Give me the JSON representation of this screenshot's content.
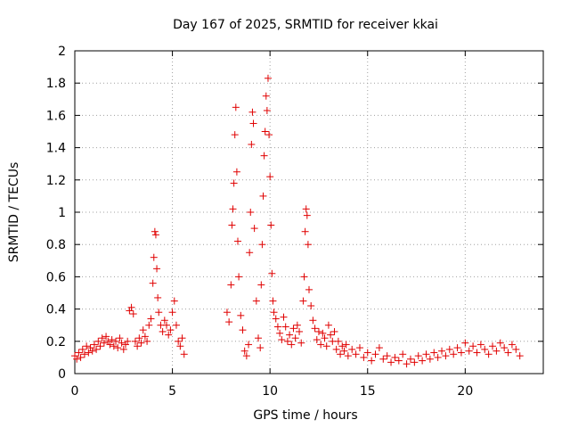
{
  "chart_data": {
    "type": "scatter",
    "title": "Day 167 of 2025, SRMTID for receiver kkai",
    "xlabel": "GPS time / hours",
    "ylabel": "SRMTID / TECUs",
    "xlim": [
      0,
      24
    ],
    "ylim": [
      0,
      2
    ],
    "x_ticks": [
      0,
      5,
      10,
      15,
      20
    ],
    "y_ticks": [
      0,
      0.2,
      0.4,
      0.6,
      0.8,
      1,
      1.2,
      1.4,
      1.6,
      1.8,
      2
    ],
    "x_tick_labels": [
      "0",
      "5",
      "10",
      "15",
      "20"
    ],
    "y_tick_labels": [
      "0",
      "0.2",
      "0.4",
      "0.6",
      "0.8",
      "1",
      "1.2",
      "1.4",
      "1.6",
      "1.8",
      "2"
    ],
    "grid": true,
    "marker": "+",
    "marker_color": "#e00000",
    "series": [
      {
        "name": "kkai",
        "points": [
          [
            0.0,
            0.11
          ],
          [
            0.1,
            0.09
          ],
          [
            0.2,
            0.13
          ],
          [
            0.3,
            0.1
          ],
          [
            0.4,
            0.15
          ],
          [
            0.5,
            0.12
          ],
          [
            0.6,
            0.17
          ],
          [
            0.7,
            0.13
          ],
          [
            0.8,
            0.16
          ],
          [
            0.9,
            0.14
          ],
          [
            1.0,
            0.18
          ],
          [
            1.1,
            0.15
          ],
          [
            1.2,
            0.2
          ],
          [
            1.3,
            0.17
          ],
          [
            1.4,
            0.22
          ],
          [
            1.5,
            0.19
          ],
          [
            1.6,
            0.23
          ],
          [
            1.7,
            0.2
          ],
          [
            1.8,
            0.18
          ],
          [
            1.9,
            0.21
          ],
          [
            2.0,
            0.17
          ],
          [
            2.1,
            0.2
          ],
          [
            2.2,
            0.16
          ],
          [
            2.3,
            0.22
          ],
          [
            2.4,
            0.19
          ],
          [
            2.5,
            0.15
          ],
          [
            2.6,
            0.18
          ],
          [
            2.7,
            0.2
          ],
          [
            2.8,
            0.39
          ],
          [
            2.9,
            0.41
          ],
          [
            3.0,
            0.37
          ],
          [
            3.1,
            0.2
          ],
          [
            3.2,
            0.17
          ],
          [
            3.3,
            0.22
          ],
          [
            3.4,
            0.19
          ],
          [
            3.5,
            0.27
          ],
          [
            3.6,
            0.23
          ],
          [
            3.7,
            0.2
          ],
          [
            3.8,
            0.3
          ],
          [
            3.9,
            0.34
          ],
          [
            4.0,
            0.56
          ],
          [
            4.05,
            0.72
          ],
          [
            4.1,
            0.88
          ],
          [
            4.15,
            0.86
          ],
          [
            4.2,
            0.65
          ],
          [
            4.25,
            0.47
          ],
          [
            4.3,
            0.38
          ],
          [
            4.4,
            0.3
          ],
          [
            4.5,
            0.26
          ],
          [
            4.6,
            0.33
          ],
          [
            4.7,
            0.3
          ],
          [
            4.8,
            0.24
          ],
          [
            4.9,
            0.27
          ],
          [
            5.0,
            0.38
          ],
          [
            5.1,
            0.45
          ],
          [
            5.2,
            0.3
          ],
          [
            5.3,
            0.2
          ],
          [
            5.4,
            0.17
          ],
          [
            5.5,
            0.22
          ],
          [
            5.6,
            0.12
          ],
          [
            7.8,
            0.38
          ],
          [
            7.9,
            0.32
          ],
          [
            8.0,
            0.55
          ],
          [
            8.05,
            0.92
          ],
          [
            8.1,
            1.02
          ],
          [
            8.15,
            1.18
          ],
          [
            8.2,
            1.48
          ],
          [
            8.25,
            1.65
          ],
          [
            8.3,
            1.25
          ],
          [
            8.35,
            0.82
          ],
          [
            8.4,
            0.6
          ],
          [
            8.5,
            0.36
          ],
          [
            8.6,
            0.27
          ],
          [
            8.7,
            0.14
          ],
          [
            8.8,
            0.11
          ],
          [
            8.9,
            0.18
          ],
          [
            8.95,
            0.75
          ],
          [
            9.0,
            1.0
          ],
          [
            9.05,
            1.42
          ],
          [
            9.1,
            1.62
          ],
          [
            9.15,
            1.55
          ],
          [
            9.2,
            0.9
          ],
          [
            9.3,
            0.45
          ],
          [
            9.4,
            0.22
          ],
          [
            9.5,
            0.16
          ],
          [
            9.55,
            0.55
          ],
          [
            9.6,
            0.8
          ],
          [
            9.65,
            1.1
          ],
          [
            9.7,
            1.35
          ],
          [
            9.75,
            1.5
          ],
          [
            9.8,
            1.72
          ],
          [
            9.85,
            1.63
          ],
          [
            9.9,
            1.83
          ],
          [
            9.95,
            1.48
          ],
          [
            10.0,
            1.22
          ],
          [
            10.05,
            0.92
          ],
          [
            10.1,
            0.62
          ],
          [
            10.15,
            0.45
          ],
          [
            10.2,
            0.38
          ],
          [
            10.3,
            0.34
          ],
          [
            10.4,
            0.29
          ],
          [
            10.5,
            0.25
          ],
          [
            10.6,
            0.21
          ],
          [
            10.7,
            0.35
          ],
          [
            10.8,
            0.29
          ],
          [
            10.9,
            0.2
          ],
          [
            11.0,
            0.24
          ],
          [
            11.1,
            0.18
          ],
          [
            11.2,
            0.28
          ],
          [
            11.3,
            0.22
          ],
          [
            11.4,
            0.3
          ],
          [
            11.5,
            0.26
          ],
          [
            11.6,
            0.19
          ],
          [
            11.7,
            0.45
          ],
          [
            11.75,
            0.6
          ],
          [
            11.8,
            0.88
          ],
          [
            11.85,
            1.02
          ],
          [
            11.9,
            0.98
          ],
          [
            11.95,
            0.8
          ],
          [
            12.0,
            0.52
          ],
          [
            12.1,
            0.42
          ],
          [
            12.2,
            0.33
          ],
          [
            12.3,
            0.28
          ],
          [
            12.4,
            0.21
          ],
          [
            12.5,
            0.26
          ],
          [
            12.6,
            0.18
          ],
          [
            12.7,
            0.25
          ],
          [
            12.8,
            0.22
          ],
          [
            12.9,
            0.17
          ],
          [
            13.0,
            0.3
          ],
          [
            13.1,
            0.24
          ],
          [
            13.2,
            0.2
          ],
          [
            13.3,
            0.26
          ],
          [
            13.4,
            0.15
          ],
          [
            13.5,
            0.2
          ],
          [
            13.6,
            0.12
          ],
          [
            13.7,
            0.17
          ],
          [
            13.8,
            0.14
          ],
          [
            13.9,
            0.18
          ],
          [
            14.0,
            0.11
          ],
          [
            14.2,
            0.15
          ],
          [
            14.4,
            0.12
          ],
          [
            14.6,
            0.16
          ],
          [
            14.8,
            0.1
          ],
          [
            15.0,
            0.13
          ],
          [
            15.2,
            0.08
          ],
          [
            15.4,
            0.12
          ],
          [
            15.6,
            0.16
          ],
          [
            15.8,
            0.09
          ],
          [
            16.0,
            0.11
          ],
          [
            16.2,
            0.07
          ],
          [
            16.4,
            0.1
          ],
          [
            16.6,
            0.08
          ],
          [
            16.8,
            0.12
          ],
          [
            17.0,
            0.06
          ],
          [
            17.2,
            0.09
          ],
          [
            17.4,
            0.07
          ],
          [
            17.6,
            0.11
          ],
          [
            17.8,
            0.08
          ],
          [
            18.0,
            0.12
          ],
          [
            18.2,
            0.09
          ],
          [
            18.4,
            0.13
          ],
          [
            18.6,
            0.1
          ],
          [
            18.8,
            0.14
          ],
          [
            19.0,
            0.11
          ],
          [
            19.2,
            0.15
          ],
          [
            19.4,
            0.12
          ],
          [
            19.6,
            0.16
          ],
          [
            19.8,
            0.13
          ],
          [
            20.0,
            0.19
          ],
          [
            20.2,
            0.14
          ],
          [
            20.4,
            0.17
          ],
          [
            20.6,
            0.13
          ],
          [
            20.8,
            0.18
          ],
          [
            21.0,
            0.15
          ],
          [
            21.2,
            0.12
          ],
          [
            21.4,
            0.17
          ],
          [
            21.6,
            0.14
          ],
          [
            21.8,
            0.19
          ],
          [
            22.0,
            0.16
          ],
          [
            22.2,
            0.13
          ],
          [
            22.4,
            0.18
          ],
          [
            22.6,
            0.15
          ],
          [
            22.8,
            0.11
          ]
        ]
      }
    ]
  }
}
